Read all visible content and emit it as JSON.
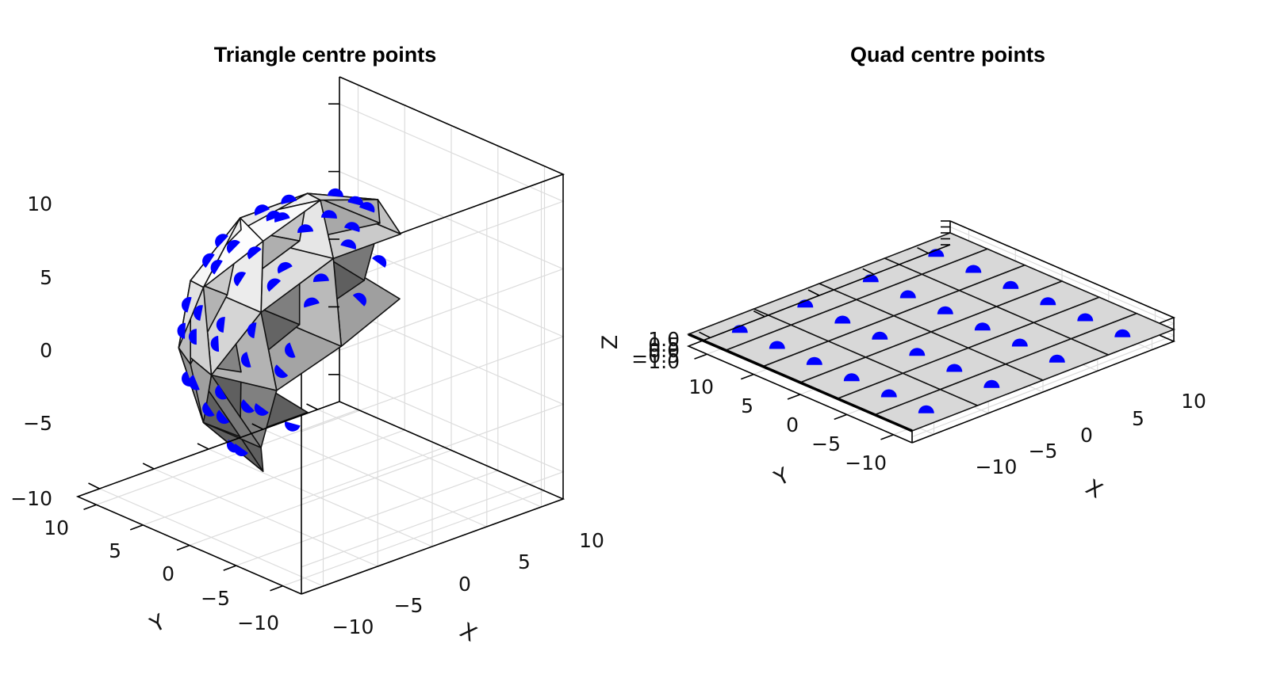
{
  "chart_data": [
    {
      "type": "scatter",
      "subtype": "3d-mesh-with-face-centres",
      "title": "Triangle centre points",
      "mesh": "icosphere",
      "mesh_radius": 10,
      "xlabel": "X",
      "ylabel": "Y",
      "zlabel": "",
      "xlim": [
        -12,
        12
      ],
      "ylim": [
        -12,
        12
      ],
      "zlim": [
        -12,
        12
      ],
      "xticks": [
        "−10",
        "−5",
        "0",
        "5",
        "10"
      ],
      "yticks": [
        "−10",
        "−5",
        "0",
        "5",
        "10"
      ],
      "zticks": [
        "−10",
        "−5",
        "0",
        "5",
        "10"
      ],
      "grid": true,
      "marker_color": "#0000ff",
      "mesh_color": "#c8c8c8"
    },
    {
      "type": "scatter",
      "subtype": "3d-mesh-with-face-centres",
      "title": "Quad centre points",
      "mesh": "quad-grid",
      "grid_x": [
        -12,
        -8,
        -4,
        0,
        4,
        8,
        12
      ],
      "grid_y": [
        -12,
        -6,
        0,
        6,
        12
      ],
      "z": 0,
      "xlabel": "X",
      "ylabel": "Y",
      "zlabel": "Z",
      "xlim": [
        -12,
        12
      ],
      "ylim": [
        -12,
        12
      ],
      "zlim": [
        -1,
        1
      ],
      "xticks": [
        "−10",
        "−5",
        "0",
        "5",
        "10"
      ],
      "yticks": [
        "−10",
        "−5",
        "0",
        "5",
        "10"
      ],
      "zticks": [
        "−1.0",
        "−0.5",
        "0.0",
        "0.5",
        "1.0"
      ],
      "grid": true,
      "marker_color": "#0000ff",
      "mesh_color": "#d8d8d8"
    }
  ]
}
